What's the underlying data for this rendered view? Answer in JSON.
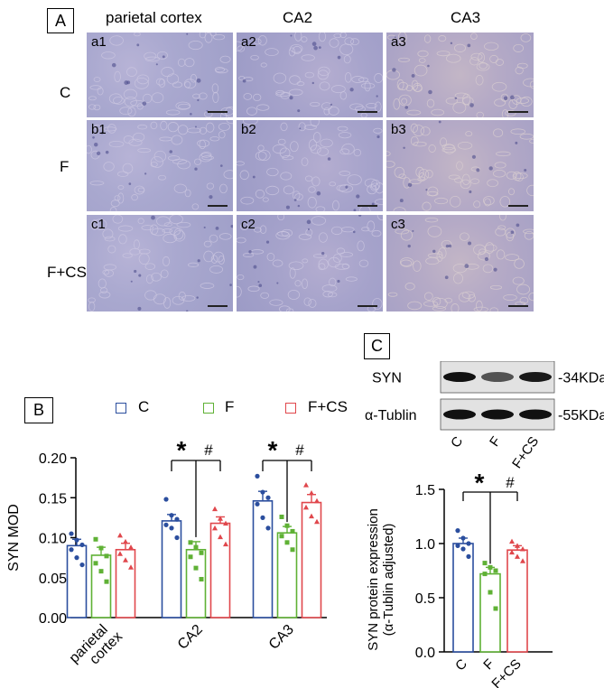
{
  "panel_a": {
    "label": "A",
    "columns": [
      "parietal cortex",
      "CA2",
      "CA3"
    ],
    "rows": [
      "C",
      "F",
      "F+CS"
    ],
    "tiles": [
      [
        "a1",
        "a2",
        "a3"
      ],
      [
        "b1",
        "b2",
        "b3"
      ],
      [
        "c1",
        "c2",
        "c3"
      ]
    ]
  },
  "panel_b": {
    "label": "B"
  },
  "panel_c": {
    "label": "C",
    "blot_labels": [
      "SYN",
      "α-Tublin"
    ],
    "blot_sizes": [
      "-34KDa",
      "-55KDa"
    ],
    "lane_labels": [
      "C",
      "F",
      "F+CS"
    ],
    "blot_intensity": {
      "SYN": [
        1.0,
        0.55,
        0.95
      ],
      "α-Tublin": [
        1.0,
        1.0,
        1.0
      ]
    }
  },
  "colors": {
    "C": "#2b4e9e",
    "F": "#5fb135",
    "F+CS": "#e0474c"
  },
  "legend": [
    "C",
    "F",
    "F+CS"
  ],
  "chart_data": [
    {
      "type": "bar",
      "categories": [
        "parietal cortex",
        "CA2",
        "CA3"
      ],
      "ylabel": "SYN MOD",
      "ylim": [
        0,
        0.2
      ],
      "yticks": [
        "0.00",
        "0.05",
        "0.10",
        "0.15",
        "0.20"
      ],
      "series": [
        {
          "name": "C",
          "values": [
            0.09,
            0.121,
            0.146
          ],
          "sem": [
            0.008,
            0.008,
            0.012
          ],
          "points": [
            [
              0.105,
              0.097,
              0.091,
              0.085,
              0.075,
              0.066
            ],
            [
              0.148,
              0.128,
              0.123,
              0.116,
              0.112,
              0.1
            ],
            [
              0.177,
              0.157,
              0.15,
              0.142,
              0.125,
              0.112
            ]
          ]
        },
        {
          "name": "F",
          "values": [
            0.078,
            0.085,
            0.106
          ],
          "sem": [
            0.01,
            0.01,
            0.008
          ],
          "points": [
            [
              0.098,
              0.087,
              0.077,
              0.068,
              0.058,
              0.045
            ],
            [
              0.094,
              0.088,
              0.081,
              0.076,
              0.062,
              0.048
            ],
            [
              0.126,
              0.115,
              0.108,
              0.102,
              0.094,
              0.085
            ]
          ]
        },
        {
          "name": "F+CS",
          "values": [
            0.085,
            0.118,
            0.144
          ],
          "sem": [
            0.008,
            0.008,
            0.01
          ],
          "points": [
            [
              0.103,
              0.095,
              0.088,
              0.08,
              0.072,
              0.063
            ],
            [
              0.136,
              0.124,
              0.118,
              0.112,
              0.101,
              0.092
            ],
            [
              0.166,
              0.156,
              0.146,
              0.138,
              0.127,
              0.12
            ]
          ]
        }
      ],
      "annotations": [
        {
          "category": "CA2",
          "star": "*",
          "hash": "#"
        },
        {
          "category": "CA3",
          "star": "*",
          "hash": "#"
        }
      ]
    },
    {
      "type": "bar",
      "categories": [
        "C",
        "F",
        "F+CS"
      ],
      "ylabel": "SYN protein expression",
      "ylabel2": "(α-Tublin adjusted)",
      "ylim": [
        0,
        1.5
      ],
      "yticks": [
        "0.0",
        "0.5",
        "1.0",
        "1.5"
      ],
      "values": [
        1.0,
        0.72,
        0.94
      ],
      "sem": [
        0.05,
        0.06,
        0.04
      ],
      "points": [
        [
          1.12,
          1.05,
          1.0,
          0.98,
          0.95,
          0.88
        ],
        [
          0.82,
          0.78,
          0.75,
          0.72,
          0.55,
          0.4
        ],
        [
          1.02,
          0.98,
          0.95,
          0.92,
          0.88,
          0.84
        ]
      ],
      "annotations": {
        "star": "*",
        "hash": "#"
      }
    }
  ]
}
